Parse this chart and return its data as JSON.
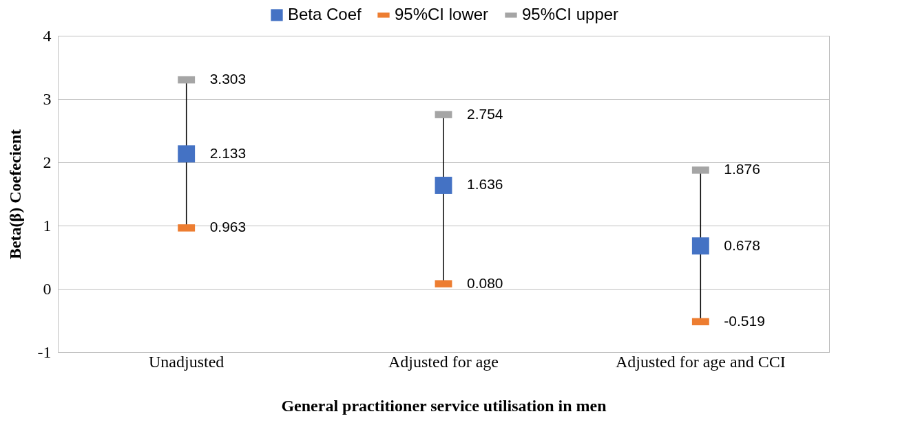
{
  "chart_data": {
    "type": "scatter",
    "xlabel": "General practitioner service utilisation in men",
    "ylabel": "Beta(β) Coefecient",
    "categories": [
      "Unadjusted",
      "Adjusted for age",
      "Adjusted for age and CCI"
    ],
    "series": [
      {
        "name": "Beta Coef",
        "color": "#4472c4",
        "marker": "square",
        "values": [
          2.133,
          1.636,
          0.678
        ],
        "value_labels": [
          "2.133",
          "1.636",
          "0.678"
        ]
      },
      {
        "name": "95%CI lower",
        "color": "#ed7d31",
        "values": [
          0.963,
          0.08,
          -0.519
        ],
        "value_labels": [
          "0.963",
          "0.080",
          "-0.519"
        ]
      },
      {
        "name": "95%CI upper",
        "color": "#a5a5a5",
        "values": [
          3.303,
          2.754,
          1.876
        ],
        "value_labels": [
          "3.303",
          "2.754",
          "1.876"
        ]
      }
    ],
    "ylim": [
      -1,
      4
    ],
    "yticks": [
      -1,
      0,
      1,
      2,
      3,
      4
    ],
    "grid": "y",
    "legend": "top",
    "data_labels": true
  }
}
